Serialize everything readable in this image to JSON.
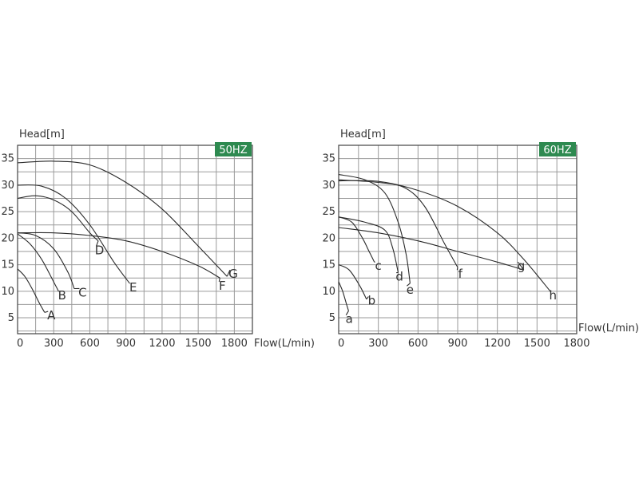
{
  "chart_data": [
    {
      "type": "line",
      "badge": "50HZ",
      "badge_color": "#2e8a50",
      "ylabel": "Head[m]",
      "xlabel": "Flow(L/min)",
      "xlim": [
        0,
        1950
      ],
      "ylim": [
        2,
        37.5
      ],
      "xticks": [
        0,
        300,
        600,
        900,
        1200,
        1500,
        1800
      ],
      "yticks": [
        5,
        10,
        15,
        20,
        25,
        30,
        35
      ],
      "grid": true,
      "series": [
        {
          "name": "A",
          "x": [
            0,
            60,
            120,
            180,
            225
          ],
          "y": [
            14.2,
            12.8,
            10.5,
            7.8,
            6.0
          ],
          "label_at": [
            280,
            4.7
          ]
        },
        {
          "name": "B",
          "x": [
            0,
            100,
            200,
            290,
            340
          ],
          "y": [
            20.8,
            19.0,
            16.0,
            12.2,
            10.0
          ],
          "label_at": [
            370,
            8.5
          ]
        },
        {
          "name": "C",
          "x": [
            0,
            150,
            300,
            420,
            470
          ],
          "y": [
            21.0,
            20.5,
            18.0,
            13.5,
            10.5
          ],
          "label_at": [
            540,
            9.0
          ]
        },
        {
          "name": "D",
          "x": [
            0,
            150,
            300,
            450,
            600,
            670
          ],
          "y": [
            27.5,
            28.0,
            27.2,
            25.0,
            21.0,
            19.5
          ],
          "label_at": [
            680,
            17.0
          ]
        },
        {
          "name": "E",
          "x": [
            0,
            200,
            400,
            600,
            800,
            930
          ],
          "y": [
            30.0,
            29.8,
            27.5,
            22.5,
            15.5,
            11.5
          ],
          "label_at": [
            960,
            10.0
          ]
        },
        {
          "name": "F",
          "x": [
            0,
            300,
            600,
            900,
            1200,
            1500,
            1680
          ],
          "y": [
            21.0,
            21.0,
            20.5,
            19.5,
            17.5,
            14.8,
            12.5
          ],
          "label_at": [
            1700,
            10.3
          ]
        },
        {
          "name": "G",
          "x": [
            0,
            300,
            600,
            900,
            1200,
            1500,
            1740
          ],
          "y": [
            34.2,
            34.5,
            33.8,
            30.5,
            25.5,
            18.5,
            12.8
          ],
          "label_at": [
            1790,
            12.5
          ]
        }
      ]
    },
    {
      "type": "line",
      "badge": "60HZ",
      "badge_color": "#2e8a50",
      "ylabel": "Head[m]",
      "xlabel": "Flow(L/min)",
      "xlim": [
        0,
        1800
      ],
      "ylim": [
        2,
        37.5
      ],
      "xticks": [
        0,
        300,
        600,
        900,
        1200,
        1500,
        1800
      ],
      "yticks": [
        5,
        10,
        15,
        20,
        25,
        30,
        35
      ],
      "grid": true,
      "series": [
        {
          "name": "a",
          "x": [
            0,
            30,
            60,
            75
          ],
          "y": [
            11.8,
            10.0,
            7.5,
            6.3
          ],
          "label_at": [
            80,
            4.0
          ]
        },
        {
          "name": "b",
          "x": [
            0,
            80,
            160,
            210
          ],
          "y": [
            15.0,
            14.0,
            11.0,
            8.5
          ],
          "label_at": [
            250,
            7.5
          ]
        },
        {
          "name": "c",
          "x": [
            0,
            100,
            180,
            230,
            270
          ],
          "y": [
            24.0,
            23.0,
            20.0,
            17.5,
            15.5
          ],
          "label_at": [
            300,
            14.0
          ]
        },
        {
          "name": "d",
          "x": [
            0,
            200,
            350,
            410,
            450
          ],
          "y": [
            24.0,
            23.0,
            21.5,
            18.0,
            13.5
          ],
          "label_at": [
            460,
            12.0
          ]
        },
        {
          "name": "e",
          "x": [
            0,
            200,
            350,
            450,
            510,
            540
          ],
          "y": [
            32.0,
            31.0,
            28.5,
            23.0,
            17.0,
            11.5
          ],
          "label_at": [
            540,
            9.5
          ]
        },
        {
          "name": "f",
          "x": [
            0,
            300,
            500,
            650,
            800,
            900
          ],
          "y": [
            31.0,
            30.5,
            29.5,
            26.0,
            19.0,
            14.5
          ],
          "label_at": [
            920,
            12.5
          ]
        },
        {
          "name": "g",
          "x": [
            0,
            300,
            600,
            900,
            1200,
            1400
          ],
          "y": [
            22.0,
            21.0,
            19.5,
            17.5,
            15.5,
            14.0
          ],
          "label_at": [
            1380,
            14.0
          ]
        },
        {
          "name": "h",
          "x": [
            0,
            300,
            600,
            900,
            1200,
            1400,
            1600
          ],
          "y": [
            30.8,
            30.7,
            29.0,
            26.0,
            21.0,
            16.0,
            10.0
          ],
          "label_at": [
            1620,
            8.5
          ]
        }
      ]
    }
  ]
}
